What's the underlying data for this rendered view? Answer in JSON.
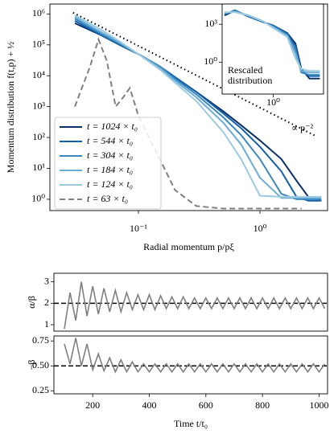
{
  "chart_data": [
    {
      "type": "line",
      "xlog": true,
      "ylog": true,
      "xlabel": "Radial momentum p/pξ",
      "ylabel": "Momentum distribution f(t,p) + ½",
      "xlim": [
        0.0187,
        3.6
      ],
      "ylim": [
        0.43,
        2100000
      ],
      "xticks": [
        {
          "value": 0.1,
          "label": "10⁻¹"
        },
        {
          "value": 1,
          "label": "10⁰"
        }
      ],
      "yticks": [
        {
          "value": 1,
          "label": "10⁰"
        },
        {
          "value": 10,
          "label": "10¹"
        },
        {
          "value": 100,
          "label": "10²"
        },
        {
          "value": 1000,
          "label": "10³"
        },
        {
          "value": 10000,
          "label": "10⁴"
        },
        {
          "value": 100000,
          "label": "10⁵"
        },
        {
          "value": 1000000,
          "label": "10⁶"
        }
      ],
      "x": [
        0.03,
        0.05,
        0.07,
        0.1,
        0.15,
        0.2,
        0.3,
        0.5,
        0.7,
        1,
        1.5,
        2,
        2.5,
        3.2
      ],
      "series": [
        {
          "name": "t = 1024 × t₀",
          "color": "#08306b",
          "values": [
            500000,
            200000,
            100000,
            50000,
            20000,
            9000,
            3000,
            700,
            250,
            80,
            20,
            4,
            1.2,
            0.9
          ]
        },
        {
          "name": "t = 544 × t₀",
          "color": "#1361a9",
          "values": [
            600000,
            200000,
            100000,
            50000,
            20000,
            9000,
            3000,
            600,
            200,
            50,
            8,
            1.2,
            0.9,
            0.9
          ]
        },
        {
          "name": "t = 304 × t₀",
          "color": "#3a87c0",
          "values": [
            700000,
            220000,
            110000,
            50000,
            20000,
            8000,
            2500,
            450,
            120,
            20,
            1.5,
            1,
            1,
            1
          ]
        },
        {
          "name": "t = 184 × t₀",
          "color": "#6aaed6",
          "values": [
            800000,
            250000,
            120000,
            50000,
            18000,
            7000,
            2000,
            300,
            60,
            5,
            1.1,
            1.1,
            1.1,
            1.1
          ]
        },
        {
          "name": "t = 124 × t₀",
          "color": "#9ecae1",
          "values": [
            900000,
            300000,
            130000,
            50000,
            16000,
            6000,
            1500,
            150,
            20,
            1.3,
            1.2,
            1.2,
            1.2,
            1.2
          ]
        },
        {
          "name": "t = 63 × t₀",
          "color": "#808080",
          "linestyle": "dashed",
          "x": [
            0.03,
            0.04,
            0.047,
            0.055,
            0.065,
            0.075,
            0.085,
            0.1,
            0.15,
            0.2,
            0.3,
            0.5,
            1,
            2.2
          ],
          "values": [
            1000,
            20000,
            150000,
            30000,
            1000,
            2000,
            4000,
            500,
            20,
            2,
            0.6,
            0.5,
            0.5,
            0.5
          ]
        }
      ],
      "guide": {
        "x": [
          0.029,
          2.9
        ],
        "values": [
          1100000,
          110
        ]
      },
      "annotation": "∝ p⁻²"
    },
    {
      "type": "line",
      "xlog": true,
      "ylog": true,
      "xlim": [
        0.08,
        12
      ],
      "ylim": [
        0.003,
        40000
      ],
      "xticks": [
        {
          "value": 1,
          "label": "10⁰"
        }
      ],
      "yticks": [
        {
          "value": 1,
          "label": "10⁰"
        },
        {
          "value": 1000,
          "label": "10³"
        }
      ],
      "x": [
        0.09,
        0.15,
        0.3,
        0.6,
        1,
        2,
        3,
        4,
        6,
        10
      ],
      "series": [
        {
          "color": "#08306b",
          "values": [
            5000,
            12000,
            4000,
            1500,
            800,
            200,
            30,
            0.3,
            0.05,
            0.05
          ]
        },
        {
          "color": "#1361a9",
          "values": [
            6000,
            13000,
            4000,
            1500,
            800,
            180,
            20,
            0.2,
            0.08,
            0.08
          ]
        },
        {
          "color": "#3a87c0",
          "values": [
            7000,
            11000,
            4500,
            1600,
            700,
            150,
            10,
            0.15,
            0.1,
            0.1
          ]
        },
        {
          "color": "#6aaed6",
          "values": [
            8000,
            10000,
            5000,
            1700,
            600,
            120,
            5,
            0.2,
            0.15,
            0.15
          ]
        },
        {
          "color": "#9ecae1",
          "values": [
            9000,
            9000,
            5000,
            1800,
            500,
            100,
            2,
            0.3,
            0.2,
            0.2
          ]
        }
      ],
      "annotation": [
        "Rescaled",
        "distribution"
      ]
    },
    {
      "type": "line",
      "ylabel": "α/β",
      "xlim": [
        63,
        1030
      ],
      "ylim": [
        0.7,
        3.4
      ],
      "yticks": [
        1,
        2,
        3
      ],
      "x": [
        100,
        120,
        140,
        160,
        180,
        200,
        220,
        240,
        260,
        280,
        300,
        320,
        340,
        360,
        380,
        400,
        420,
        440,
        460,
        480,
        500,
        520,
        540,
        560,
        580,
        600,
        620,
        640,
        660,
        680,
        700,
        720,
        740,
        760,
        780,
        800,
        820,
        840,
        860,
        880,
        900,
        920,
        940,
        960,
        980,
        1000,
        1020
      ],
      "series": [
        {
          "color": "#808080",
          "values": [
            0.8,
            2.5,
            1.2,
            3.0,
            1.4,
            2.8,
            1.5,
            2.7,
            1.6,
            2.6,
            1.6,
            2.5,
            1.7,
            2.4,
            1.7,
            2.4,
            1.7,
            2.35,
            1.75,
            2.3,
            1.75,
            2.3,
            1.75,
            2.25,
            1.75,
            2.25,
            1.75,
            2.25,
            1.75,
            2.25,
            1.75,
            2.25,
            1.75,
            2.25,
            1.75,
            2.25,
            1.75,
            2.25,
            1.75,
            2.25,
            1.75,
            2.25,
            1.75,
            2.25,
            1.75,
            2.25,
            1.75
          ]
        }
      ],
      "reference": 2
    },
    {
      "type": "line",
      "ylabel": "−β",
      "xlabel": "Time t/t₀",
      "xlim": [
        63,
        1030
      ],
      "ylim": [
        0.22,
        0.8
      ],
      "xticks": [
        200,
        400,
        600,
        800,
        1000
      ],
      "yticks": [
        0.25,
        {
          "value": 0.5,
          "label": "0.50"
        },
        0.75
      ],
      "x": [
        100,
        120,
        140,
        160,
        180,
        200,
        220,
        240,
        260,
        280,
        300,
        320,
        340,
        360,
        380,
        400,
        420,
        440,
        460,
        480,
        500,
        520,
        540,
        560,
        580,
        600,
        620,
        640,
        660,
        680,
        700,
        720,
        740,
        760,
        780,
        800,
        820,
        840,
        860,
        880,
        900,
        920,
        940,
        960,
        980,
        1000,
        1020
      ],
      "series": [
        {
          "color": "#808080",
          "values": [
            0.72,
            0.52,
            0.78,
            0.5,
            0.72,
            0.46,
            0.62,
            0.45,
            0.58,
            0.44,
            0.56,
            0.44,
            0.54,
            0.44,
            0.52,
            0.44,
            0.52,
            0.44,
            0.52,
            0.44,
            0.52,
            0.44,
            0.52,
            0.44,
            0.52,
            0.44,
            0.52,
            0.44,
            0.52,
            0.44,
            0.52,
            0.44,
            0.52,
            0.44,
            0.52,
            0.44,
            0.52,
            0.44,
            0.52,
            0.44,
            0.52,
            0.44,
            0.52,
            0.44,
            0.52,
            0.44,
            0.52
          ]
        }
      ],
      "reference": 0.5
    }
  ]
}
